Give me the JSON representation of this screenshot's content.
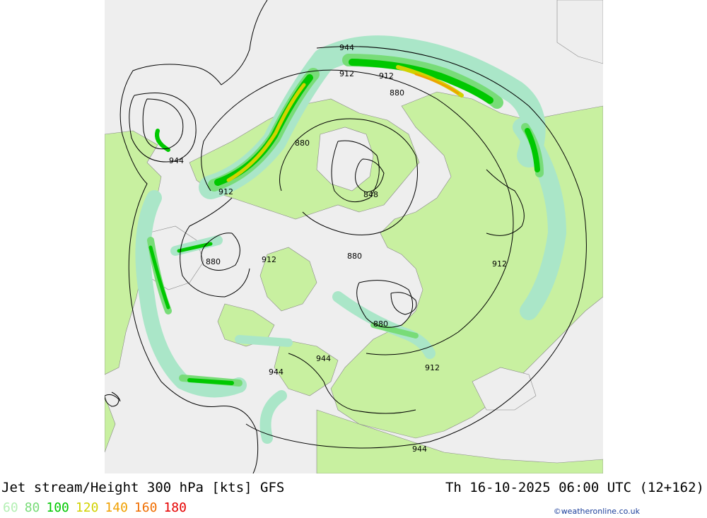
{
  "map": {
    "title": "Jet stream/Height 300 hPa [kts] GFS",
    "timestamp": "Th 16-10-2025 06:00 UTC (12+162)",
    "credit": "©weatheronline.co.uk",
    "legend": [
      {
        "label": "60",
        "color": "#b4f0b4"
      },
      {
        "label": "80",
        "color": "#78dc78"
      },
      {
        "label": "100",
        "color": "#00c800"
      },
      {
        "label": "120",
        "color": "#d2d200"
      },
      {
        "label": "140",
        "color": "#f0a000"
      },
      {
        "label": "160",
        "color": "#f06e00"
      },
      {
        "label": "180",
        "color": "#e60000"
      }
    ],
    "contour_labels": {
      "c944_top": "944",
      "c912_top": "912",
      "c912_top2": "912",
      "c880_top": "880",
      "c880_mid": "880",
      "c848": "848",
      "c944_left": "944",
      "c912_left": "912",
      "c880_left": "880",
      "c912_center": "912",
      "c880_center": "880",
      "c912_right": "912",
      "c880_lower": "880",
      "c912_lower": "912",
      "c944_lowerleft": "944",
      "c944_lowerleft2": "944",
      "c944_bottom": "944"
    },
    "colors": {
      "land": "#c8f0a0",
      "sea": "#eeeeee",
      "jet_60": "#aae6c8",
      "jet_80": "#78dc78",
      "jet_100": "#00c800",
      "jet_120": "#d2d200",
      "jet_140": "#f0a000"
    }
  }
}
